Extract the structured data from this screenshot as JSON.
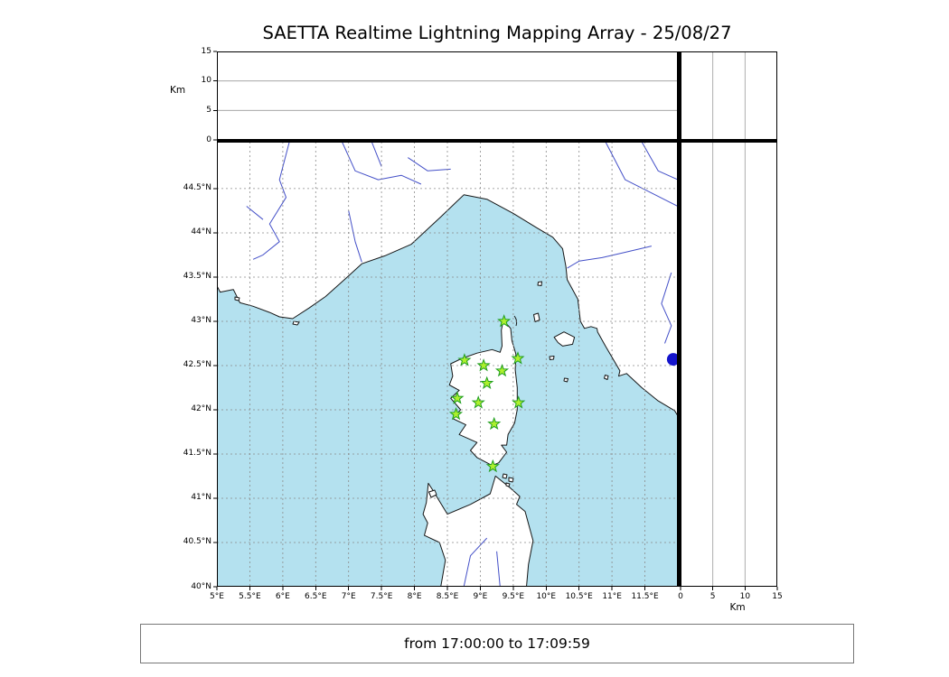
{
  "title": "SAETTA Realtime Lightning Mapping Array - 25/08/27",
  "footer": {
    "time_range": "from 17:00:00 to 17:09:59"
  },
  "labels": {
    "altitude_unit_top": "Km",
    "altitude_unit_right": "Km"
  },
  "axes": {
    "altitude_ticks": [
      0,
      5,
      10,
      15
    ],
    "altitude_range_km": [
      0,
      15
    ],
    "lon_ticks": [
      {
        "v": 5,
        "label": "5°E"
      },
      {
        "v": 5.5,
        "label": "5.5°E"
      },
      {
        "v": 6,
        "label": "6°E"
      },
      {
        "v": 6.5,
        "label": "6.5°E"
      },
      {
        "v": 7,
        "label": "7°E"
      },
      {
        "v": 7.5,
        "label": "7.5°E"
      },
      {
        "v": 8,
        "label": "8°E"
      },
      {
        "v": 8.5,
        "label": "8.5°E"
      },
      {
        "v": 9,
        "label": "9°E"
      },
      {
        "v": 9.5,
        "label": "9.5°E"
      },
      {
        "v": 10,
        "label": "10°E"
      },
      {
        "v": 10.5,
        "label": "10.5°E"
      },
      {
        "v": 11,
        "label": "11°E"
      },
      {
        "v": 11.5,
        "label": "11.5°E"
      }
    ],
    "lat_ticks": [
      {
        "v": 40,
        "label": "40°N"
      },
      {
        "v": 40.5,
        "label": "40.5°N"
      },
      {
        "v": 41,
        "label": "41°N"
      },
      {
        "v": 41.5,
        "label": "41.5°N"
      },
      {
        "v": 42,
        "label": "42°N"
      },
      {
        "v": 42.5,
        "label": "42.5°N"
      },
      {
        "v": 43,
        "label": "43°N"
      },
      {
        "v": 43.5,
        "label": "43.5°N"
      },
      {
        "v": 44,
        "label": "44°N"
      },
      {
        "v": 44.5,
        "label": "44.5°N"
      }
    ]
  },
  "chart_data": {
    "type": "scatter",
    "title": "SAETTA Realtime Lightning Mapping Array - 25/08/27",
    "time_window": "from 17:00:00 to 17:09:59",
    "map_extent": {
      "lon_min": 5,
      "lon_max": 12,
      "lat_min": 40,
      "lat_max": 45.03
    },
    "altitude_range_km": [
      0,
      15
    ],
    "graticule_step_deg": 0.5,
    "panels": [
      "altitude vs longitude (top, empty)",
      "plan view map Corsica region (main)",
      "altitude vs latitude (right, empty)",
      "altitude histogram (top-right, empty)"
    ],
    "stations": {
      "marker": "star",
      "fill": "#aef02e",
      "edge": "#1f9e1f",
      "points": [
        {
          "lon": 9.36,
          "lat": 43.0
        },
        {
          "lon": 8.76,
          "lat": 42.56
        },
        {
          "lon": 9.05,
          "lat": 42.5
        },
        {
          "lon": 9.33,
          "lat": 42.44
        },
        {
          "lon": 9.57,
          "lat": 42.58
        },
        {
          "lon": 9.1,
          "lat": 42.3
        },
        {
          "lon": 8.65,
          "lat": 42.13
        },
        {
          "lon": 8.97,
          "lat": 42.08
        },
        {
          "lon": 9.58,
          "lat": 42.08
        },
        {
          "lon": 8.63,
          "lat": 41.95
        },
        {
          "lon": 9.21,
          "lat": 41.84
        },
        {
          "lon": 9.19,
          "lat": 41.36
        }
      ]
    },
    "event_marker": {
      "shape": "circle",
      "color": "#1414cc",
      "lon": 11.93,
      "lat": 42.57
    }
  },
  "colors": {
    "sea": "#b4e1ef",
    "land": "#ffffff",
    "coast": "#161616",
    "river": "#4450c8",
    "graticule": "#8a8a8a",
    "panel_grid": "#9a9a9a",
    "star_fill": "#aef02e",
    "star_edge": "#1f9e1f",
    "event_dot": "#1414cc"
  }
}
